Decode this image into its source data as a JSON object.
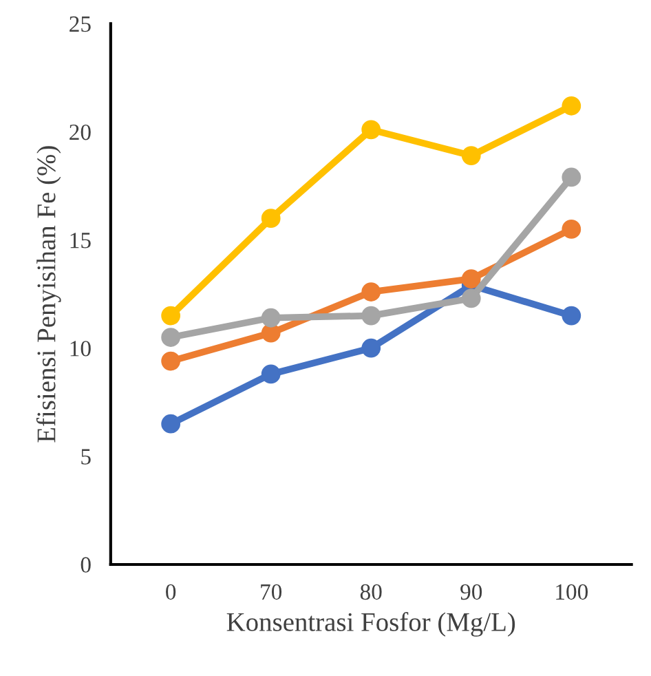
{
  "chart_data": {
    "type": "line",
    "xlabel": "Konsentrasi Fosfor (Mg/L)",
    "ylabel": "Efisiensi Penyisihan Fe (%)",
    "categories": [
      "0",
      "70",
      "80",
      "90",
      "100"
    ],
    "series": [
      {
        "color": "#4472c4",
        "values": [
          6.5,
          8.8,
          10.0,
          12.9,
          11.5
        ]
      },
      {
        "color": "#ed7d31",
        "values": [
          9.4,
          10.7,
          12.6,
          13.2,
          15.5
        ]
      },
      {
        "color": "#a5a5a5",
        "values": [
          10.5,
          11.4,
          11.5,
          12.3,
          17.9
        ]
      },
      {
        "color": "#ffc000",
        "values": [
          11.5,
          16.0,
          20.1,
          18.9,
          21.2
        ]
      }
    ],
    "ylim": [
      0,
      25
    ],
    "yticks": [
      0,
      5,
      10,
      15,
      20,
      25
    ],
    "grid": false,
    "marker": "circle",
    "line_style": "solid"
  }
}
